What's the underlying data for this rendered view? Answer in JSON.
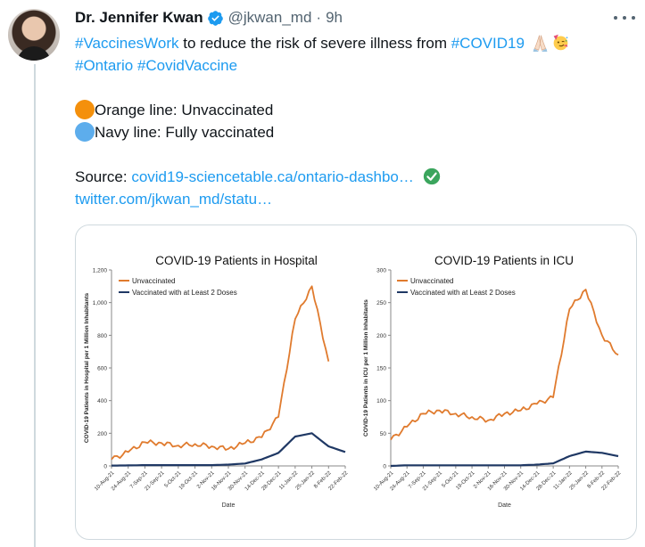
{
  "author": {
    "name": "Dr. Jennifer Kwan",
    "handle": "@jkwan_md",
    "time": "9h"
  },
  "tweet": {
    "line1": {
      "tag1": "#VaccinesWork",
      "text1": " to reduce the risk of severe illness from ",
      "tag2": "#COVID19"
    },
    "line2": {
      "tag1": "#Ontario",
      "tag2": "#CovidVaccine"
    },
    "legend_orange": "Orange line: Unvaccinated",
    "legend_navy": "Navy line: Fully vaccinated",
    "source_label": "Source: ",
    "source_link": "covid19-sciencetable.ca/ontario-dashbo…",
    "twitter_link": "twitter.com/jkwan_md/statu…"
  },
  "colors": {
    "unvaccinated": "#e07b2e",
    "vaccinated": "#1f3864",
    "link": "#1d9bf0"
  },
  "icons": {
    "verified": "verified-badge-icon",
    "praying_hands": "folded-hands-emoji",
    "party_face": "partying-face-emoji",
    "check": "check-mark-button-emoji"
  },
  "chart_data": [
    {
      "type": "line",
      "title": "COVID-19 Patients in Hospital",
      "xlabel": "Date",
      "ylabel": "COVID-19 Patients in Hospital per 1 Million Inhabitants",
      "ylim": [
        0,
        1200
      ],
      "yticks": [
        "0",
        "200",
        "400",
        "600",
        "800",
        "1,000",
        "1,200"
      ],
      "x": [
        "10-Aug-21",
        "24-Aug-21",
        "7-Sep-21",
        "21-Sep-21",
        "5-Oct-21",
        "19-Oct-21",
        "2-Nov-21",
        "16-Nov-21",
        "30-Nov-21",
        "14-Dec-21",
        "28-Dec-21",
        "11-Jan-22",
        "25-Jan-22",
        "8-Feb-22",
        "22-Feb-22"
      ],
      "legend_placement": "top-left",
      "series": [
        {
          "name": "Unvaccinated",
          "values": [
            40,
            85,
            145,
            140,
            125,
            135,
            120,
            105,
            140,
            175,
            300,
            900,
            1100,
            640,
            null
          ]
        },
        {
          "name": "Vaccinated with at Least 2 Doses",
          "values": [
            2,
            3,
            5,
            5,
            5,
            5,
            5,
            8,
            15,
            40,
            80,
            180,
            200,
            120,
            85
          ]
        }
      ]
    },
    {
      "type": "line",
      "title": "COVID-19 Patients in ICU",
      "xlabel": "Date",
      "ylabel": "COVID-19 Patients in ICU per 1 Million Inhabitants",
      "ylim": [
        0,
        300
      ],
      "yticks": [
        "0",
        "50",
        "100",
        "150",
        "200",
        "250",
        "300"
      ],
      "x": [
        "10-Aug-21",
        "24-Aug-21",
        "7-Sep-21",
        "21-Sep-21",
        "5-Oct-21",
        "19-Oct-21",
        "2-Nov-21",
        "16-Nov-21",
        "30-Nov-21",
        "14-Dec-21",
        "28-Dec-21",
        "11-Jan-22",
        "25-Jan-22",
        "8-Feb-22",
        "22-Feb-22"
      ],
      "legend_placement": "top-left",
      "series": [
        {
          "name": "Unvaccinated",
          "values": [
            40,
            60,
            80,
            85,
            80,
            75,
            70,
            80,
            85,
            95,
            105,
            240,
            270,
            200,
            170
          ]
        },
        {
          "name": "Vaccinated with at Least 2 Doses",
          "values": [
            0,
            1,
            1,
            1,
            1,
            1,
            1,
            1,
            1,
            2,
            4,
            15,
            22,
            20,
            15
          ]
        }
      ]
    }
  ]
}
